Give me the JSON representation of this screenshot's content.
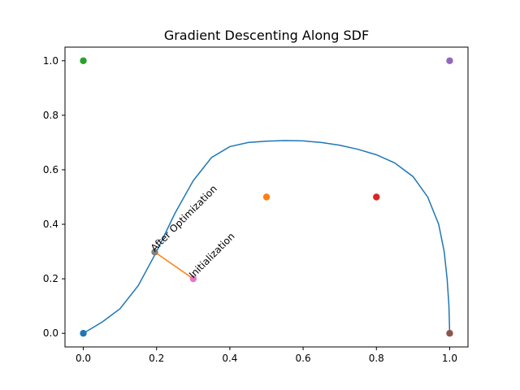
{
  "chart_data": {
    "type": "scatter",
    "title": "Gradient Descenting Along SDF",
    "xlabel": "",
    "ylabel": "",
    "xlim": [
      -0.05,
      1.05
    ],
    "ylim": [
      -0.05,
      1.05
    ],
    "xticks": [
      0.0,
      0.2,
      0.4,
      0.6,
      0.8,
      1.0
    ],
    "xtick_labels": [
      "0.0",
      "0.2",
      "0.4",
      "0.6",
      "0.8",
      "1.0"
    ],
    "yticks": [
      0.0,
      0.2,
      0.4,
      0.6,
      0.8,
      1.0
    ],
    "ytick_labels": [
      "0.0",
      "0.2",
      "0.4",
      "0.6",
      "0.8",
      "1.0"
    ],
    "grid": false,
    "curve": {
      "color": "#1f77b4",
      "points": [
        [
          0.0,
          0.0
        ],
        [
          0.05,
          0.04
        ],
        [
          0.1,
          0.09
        ],
        [
          0.15,
          0.175
        ],
        [
          0.2,
          0.3
        ],
        [
          0.25,
          0.44
        ],
        [
          0.3,
          0.56
        ],
        [
          0.35,
          0.645
        ],
        [
          0.4,
          0.685
        ],
        [
          0.45,
          0.7
        ],
        [
          0.5,
          0.705
        ],
        [
          0.55,
          0.707
        ],
        [
          0.6,
          0.706
        ],
        [
          0.65,
          0.7
        ],
        [
          0.7,
          0.69
        ],
        [
          0.75,
          0.675
        ],
        [
          0.8,
          0.655
        ],
        [
          0.85,
          0.625
        ],
        [
          0.9,
          0.575
        ],
        [
          0.94,
          0.5
        ],
        [
          0.97,
          0.4
        ],
        [
          0.985,
          0.3
        ],
        [
          0.993,
          0.2
        ],
        [
          0.998,
          0.1
        ],
        [
          1.0,
          0.0
        ]
      ]
    },
    "points": [
      {
        "x": 0.0,
        "y": 0.0,
        "color": "#1f77b4"
      },
      {
        "x": 0.5,
        "y": 0.5,
        "color": "#ff7f0e"
      },
      {
        "x": 0.0,
        "y": 1.0,
        "color": "#2ca02c"
      },
      {
        "x": 0.8,
        "y": 0.5,
        "color": "#d62728"
      },
      {
        "x": 1.0,
        "y": 1.0,
        "color": "#9467bd"
      },
      {
        "x": 1.0,
        "y": 0.0,
        "color": "#8c564b"
      },
      {
        "x": 0.3,
        "y": 0.2,
        "color": "#e377c2"
      },
      {
        "x": 0.195,
        "y": 0.298,
        "color": "#7f7f7f"
      }
    ],
    "optimization_path": {
      "from": [
        0.3,
        0.2
      ],
      "to": [
        0.195,
        0.298
      ],
      "color": "#ff7f0e"
    },
    "annotations": [
      {
        "text": "Initialization",
        "x": 0.3,
        "y": 0.2,
        "rotation": -45
      },
      {
        "text": "After Optimization",
        "x": 0.195,
        "y": 0.298,
        "rotation": -45
      }
    ]
  }
}
